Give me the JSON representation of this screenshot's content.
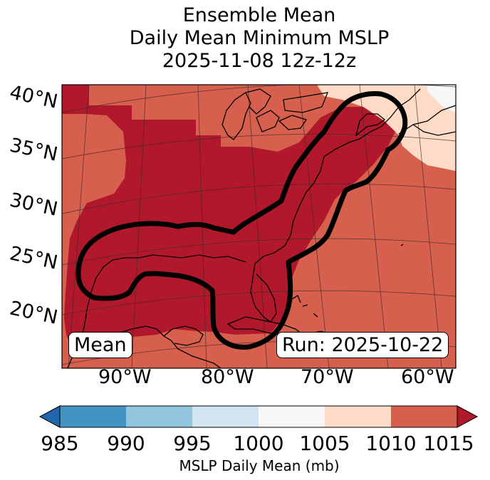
{
  "title": {
    "line1": "Ensemble Mean",
    "line2": "Daily Mean Minimum MSLP",
    "line3": "2025-11-08 12z-12z"
  },
  "map": {
    "latitudes": [
      "40°N",
      "35°N",
      "30°N",
      "25°N",
      "20°N"
    ],
    "longitudes": [
      "90°W",
      "80°W",
      "70°W",
      "60°W"
    ],
    "fill_colors": {
      "1010_1015": "#d6604d",
      "above_1015": "#b2182b",
      "1005_1010": "#fddbc7",
      "1000_1005": "#f7f7f7"
    },
    "contour_color": "#000000",
    "badge_left": "Mean",
    "badge_right": "Run: 2025-10-22"
  },
  "colorbar": {
    "ticks": [
      "985",
      "990",
      "995",
      "1000",
      "1005",
      "1010",
      "1015"
    ],
    "colors": [
      "#2166ac",
      "#4393c3",
      "#92c5de",
      "#d1e5f0",
      "#f7f7f7",
      "#fddbc7",
      "#d6604d",
      "#b2182b"
    ],
    "label": "MSLP Daily Mean (mb)"
  }
}
